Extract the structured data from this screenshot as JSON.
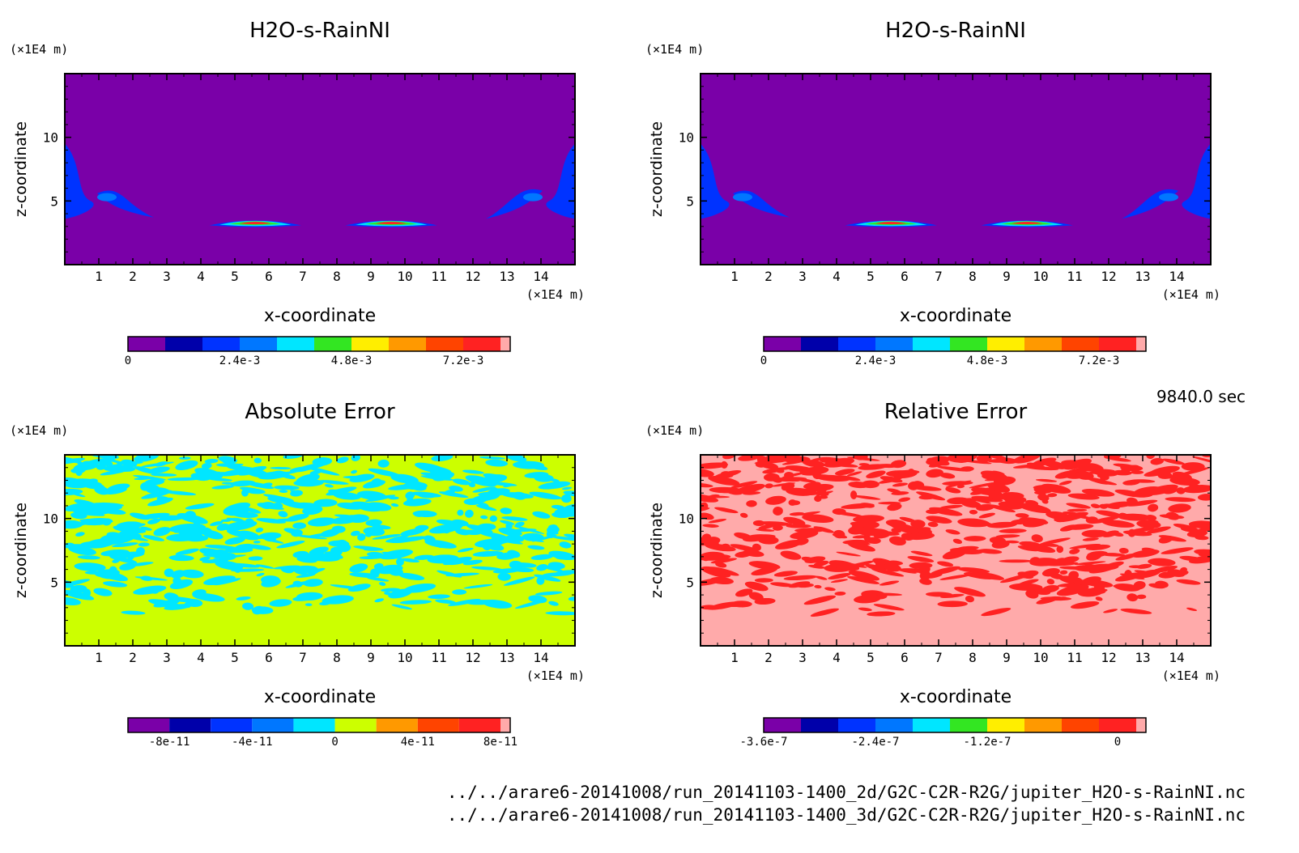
{
  "colors": {
    "purple": "#7a00a8",
    "navy": "#0000aa",
    "blue": "#0033ff",
    "azure": "#0077ff",
    "cyan": "#00e6ff",
    "green": "#33e622",
    "lime": "#ccff00",
    "yellow": "#ffee00",
    "orange": "#ff9900",
    "redorange": "#ff4400",
    "red": "#ff2222",
    "pink": "#ffaaaa"
  },
  "chart_data": [
    {
      "type": "heatmap",
      "id": "top-left",
      "title": "H2O-s-RainNI",
      "xlabel": "x-coordinate",
      "ylabel": "z-coordinate",
      "x_unit": "(×1E4 m)",
      "y_unit": "(×1E4 m)",
      "xlim": [
        0,
        15
      ],
      "ylim": [
        0,
        15
      ],
      "x_ticks": [
        1,
        2,
        3,
        4,
        5,
        6,
        7,
        8,
        9,
        10,
        11,
        12,
        13,
        14
      ],
      "y_ticks": [
        5,
        10
      ],
      "background": "#7a00a8",
      "features": [
        {
          "kind": "blob",
          "cx": 5.6,
          "cz": 3.3,
          "rx": 1.35,
          "rz": 0.35,
          "levels": [
            "#0033ff",
            "#00e6ff",
            "#33e622",
            "#ff2222"
          ]
        },
        {
          "kind": "blob",
          "cx": 9.6,
          "cz": 3.3,
          "rx": 1.35,
          "rz": 0.35,
          "levels": [
            "#0033ff",
            "#00e6ff",
            "#33e622",
            "#ff2222"
          ]
        },
        {
          "kind": "edge",
          "side": "left"
        },
        {
          "kind": "edge",
          "side": "right"
        }
      ],
      "colorbar": {
        "colors": [
          "#7a00a8",
          "#0000aa",
          "#0033ff",
          "#0077ff",
          "#00e6ff",
          "#33e622",
          "#ffee00",
          "#ff9900",
          "#ff4400",
          "#ff2222",
          "#ffaaaa"
        ],
        "labels": [
          "0",
          "2.4e-3",
          "4.8e-3",
          "7.2e-3"
        ],
        "label_positions": [
          0,
          3,
          6,
          9
        ]
      }
    },
    {
      "type": "heatmap",
      "id": "top-right",
      "title": "H2O-s-RainNI",
      "xlabel": "x-coordinate",
      "ylabel": "z-coordinate",
      "x_unit": "(×1E4 m)",
      "y_unit": "(×1E4 m)",
      "xlim": [
        0,
        15
      ],
      "ylim": [
        0,
        15
      ],
      "x_ticks": [
        1,
        2,
        3,
        4,
        5,
        6,
        7,
        8,
        9,
        10,
        11,
        12,
        13,
        14
      ],
      "y_ticks": [
        5,
        10
      ],
      "background": "#7a00a8",
      "features": [
        {
          "kind": "blob",
          "cx": 5.6,
          "cz": 3.3,
          "rx": 1.35,
          "rz": 0.35,
          "levels": [
            "#0033ff",
            "#00e6ff",
            "#33e622",
            "#ff2222"
          ]
        },
        {
          "kind": "blob",
          "cx": 9.6,
          "cz": 3.3,
          "rx": 1.35,
          "rz": 0.35,
          "levels": [
            "#0033ff",
            "#00e6ff",
            "#33e622",
            "#ff2222"
          ]
        },
        {
          "kind": "edge",
          "side": "left"
        },
        {
          "kind": "edge",
          "side": "right"
        }
      ],
      "colorbar": {
        "colors": [
          "#7a00a8",
          "#0000aa",
          "#0033ff",
          "#0077ff",
          "#00e6ff",
          "#33e622",
          "#ffee00",
          "#ff9900",
          "#ff4400",
          "#ff2222",
          "#ffaaaa"
        ],
        "labels": [
          "0",
          "2.4e-3",
          "4.8e-3",
          "7.2e-3"
        ],
        "label_positions": [
          0,
          3,
          6,
          9
        ]
      }
    },
    {
      "type": "heatmap",
      "id": "bottom-left",
      "title": "Absolute Error",
      "xlabel": "x-coordinate",
      "ylabel": "z-coordinate",
      "x_unit": "(×1E4 m)",
      "y_unit": "(×1E4 m)",
      "xlim": [
        0,
        15
      ],
      "ylim": [
        0,
        15
      ],
      "x_ticks": [
        1,
        2,
        3,
        4,
        5,
        6,
        7,
        8,
        9,
        10,
        11,
        12,
        13,
        14
      ],
      "y_ticks": [
        5,
        10
      ],
      "background": "#ccff00",
      "noise": {
        "color": "#00e6ff",
        "z_min": 2.5,
        "seed": 7
      },
      "colorbar": {
        "colors": [
          "#7a00a8",
          "#0000aa",
          "#0033ff",
          "#0077ff",
          "#00e6ff",
          "#ccff00",
          "#ff9900",
          "#ff4400",
          "#ff2222",
          "#ffaaaa"
        ],
        "labels": [
          "-8e-11",
          "-4e-11",
          "0",
          "4e-11",
          "8e-11"
        ],
        "label_positions": [
          1,
          3,
          5,
          7,
          9
        ]
      }
    },
    {
      "type": "heatmap",
      "id": "bottom-right",
      "title": "Relative Error",
      "xlabel": "x-coordinate",
      "ylabel": "z-coordinate",
      "x_unit": "(×1E4 m)",
      "y_unit": "(×1E4 m)",
      "xlim": [
        0,
        15
      ],
      "ylim": [
        0,
        15
      ],
      "x_ticks": [
        1,
        2,
        3,
        4,
        5,
        6,
        7,
        8,
        9,
        10,
        11,
        12,
        13,
        14
      ],
      "y_ticks": [
        5,
        10
      ],
      "background": "#ffaaaa",
      "noise": {
        "color": "#ff2222",
        "z_min": 2.5,
        "seed": 19
      },
      "colorbar": {
        "colors": [
          "#7a00a8",
          "#0000aa",
          "#0033ff",
          "#0077ff",
          "#00e6ff",
          "#33e622",
          "#ffee00",
          "#ff9900",
          "#ff4400",
          "#ff2222",
          "#ffaaaa"
        ],
        "labels": [
          "-3.6e-7",
          "-2.4e-7",
          "-1.2e-7",
          "0"
        ],
        "label_positions": [
          0,
          3,
          6,
          9.5
        ]
      }
    }
  ],
  "time_label": "9840.0 sec",
  "footer": {
    "file_2d": "../../arare6-20141008/run_20141103-1400_2d/G2C-C2R-R2G/jupiter_H2O-s-RainNI.nc",
    "file_3d": "../../arare6-20141008/run_20141103-1400_3d/G2C-C2R-R2G/jupiter_H2O-s-RainNI.nc"
  }
}
